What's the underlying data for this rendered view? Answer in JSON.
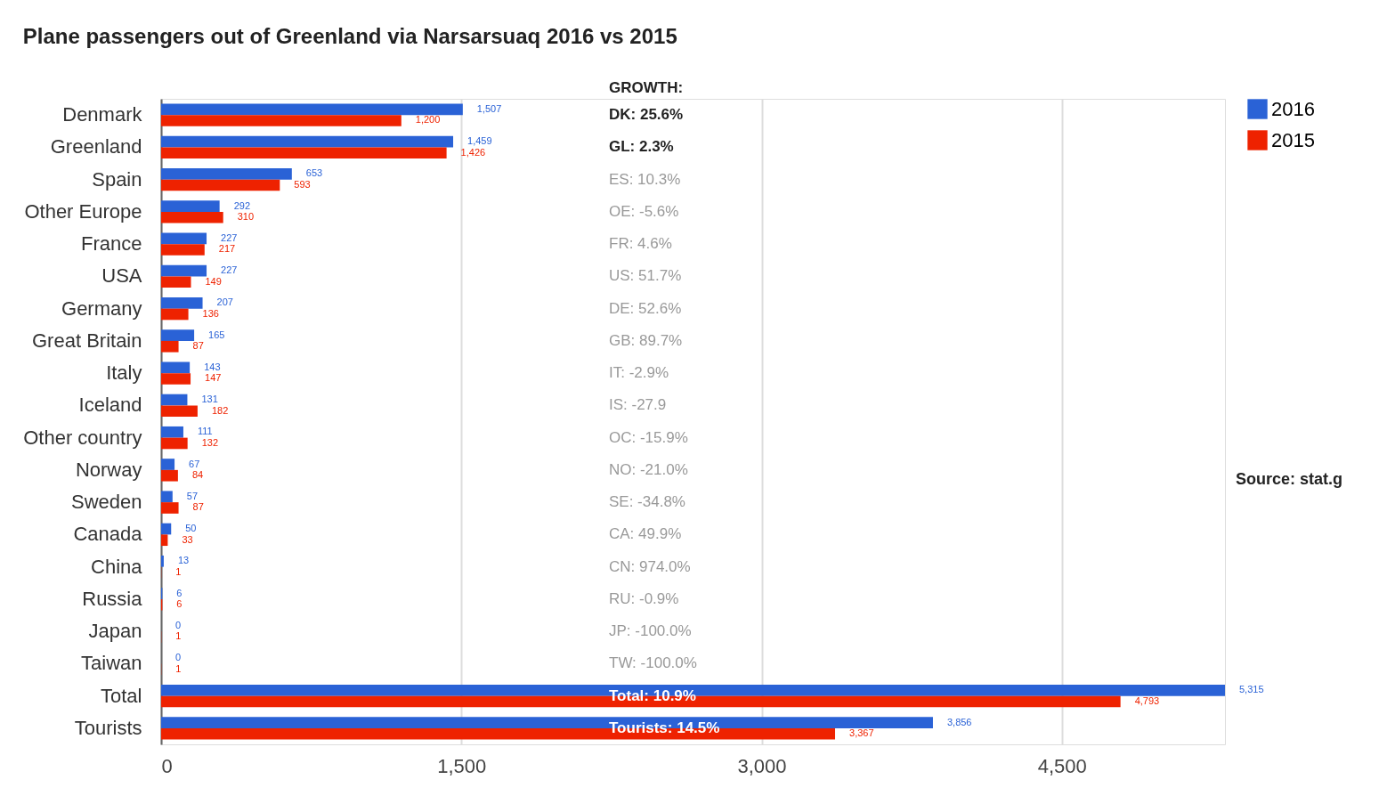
{
  "chart_data": {
    "type": "bar",
    "orientation": "horizontal",
    "title": "Plane passengers out of Greenland via Narsarsuaq 2016 vs 2015",
    "categories": [
      "Denmark",
      "Greenland",
      "Spain",
      "Other Europe",
      "France",
      "USA",
      "Germany",
      "Great Britain",
      "Italy",
      "Iceland",
      "Other country",
      "Norway",
      "Sweden",
      "Canada",
      "China",
      "Russia",
      "Japan",
      "Taiwan",
      "Total",
      "Tourists"
    ],
    "series": [
      {
        "name": "2016",
        "color": "#2a62d6",
        "values": [
          1507,
          1459,
          653,
          292,
          227,
          227,
          207,
          165,
          143,
          131,
          111,
          67,
          57,
          50,
          13,
          6,
          0,
          0,
          5315,
          3856
        ],
        "value_labels": [
          "1,507",
          "1,459",
          "653",
          "292",
          "227",
          "227",
          "207",
          "165",
          "143",
          "131",
          "111",
          "67",
          "57",
          "50",
          "13",
          "6",
          "0",
          "0",
          "5,315",
          "3,856"
        ]
      },
      {
        "name": "2015",
        "color": "#ee2200",
        "values": [
          1200,
          1426,
          593,
          310,
          217,
          149,
          136,
          87,
          147,
          182,
          132,
          84,
          87,
          33,
          1,
          6,
          1,
          1,
          4793,
          3367
        ],
        "value_labels": [
          "1,200",
          "1,426",
          "593",
          "310",
          "217",
          "149",
          "136",
          "87",
          "147",
          "182",
          "132",
          "84",
          "87",
          "33",
          "1",
          "6",
          "1",
          "1",
          "4,793",
          "3,367"
        ]
      }
    ],
    "xlim": [
      0,
      5315
    ],
    "xticks": [
      0,
      {
        "value": 1500,
        "label": "1,500"
      },
      {
        "value": 3000,
        "label": "3,000"
      },
      {
        "value": 4500,
        "label": "4,500"
      }
    ],
    "grid": "x",
    "legend": "top right",
    "annotations": [
      "GROWTH:",
      "DK: 25.6%",
      "GL: 2.3%",
      "ES: 10.3%",
      "OE: -5.6%",
      "FR: 4.6%",
      "US: 51.7%",
      "DE: 52.6%",
      "GB: 89.7%",
      "IT: -2.9%",
      "IS: -27.9",
      "OC: -15.9%",
      "NO: -21.0%",
      "SE: -34.8%",
      "CA: 49.9%",
      "CN: 974.0%",
      "RU: -0.9%",
      "JP: -100.0%",
      "TW: -100.0%",
      "Total: 10.9%",
      "Tourists: 14.5%",
      "Source: stat.g"
    ]
  }
}
